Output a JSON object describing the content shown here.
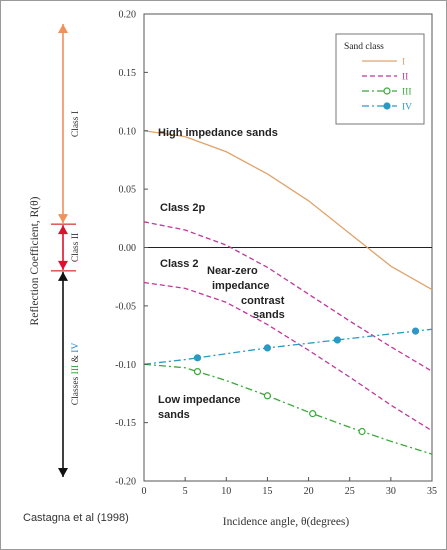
{
  "chart_data": {
    "type": "line",
    "xlabel": "Incidence angle, θ(degrees)",
    "ylabel": "Reflection Coefficient, R(θ)",
    "xlim": [
      0,
      35
    ],
    "ylim": [
      -0.2,
      0.2
    ],
    "xticks": [
      "0",
      "5",
      "10",
      "15",
      "20",
      "25",
      "30",
      "35"
    ],
    "yticks": [
      "0.20",
      "0.15",
      "0.10",
      "0.05",
      "0.00",
      "-0.05",
      "-0.10",
      "-0.15",
      "-0.20"
    ],
    "grid": false,
    "legend": {
      "title": "Sand class",
      "position": "top-right"
    },
    "series": [
      {
        "name": "I",
        "color": "#e0a36b",
        "style": "solid",
        "x": [
          0,
          5,
          10,
          15,
          20,
          25,
          30,
          35
        ],
        "y": [
          0.1,
          0.095,
          0.082,
          0.063,
          0.04,
          0.012,
          -0.016,
          -0.036
        ]
      },
      {
        "name": "II",
        "color": "#c0389a",
        "style": "dashed",
        "x": [
          0,
          5,
          10,
          15,
          20,
          25,
          30,
          35
        ],
        "y": [
          0.022,
          0.015,
          0.002,
          -0.017,
          -0.04,
          -0.063,
          -0.085,
          -0.106
        ]
      },
      {
        "name": "II",
        "color": "#c0389a",
        "style": "dashed",
        "x": [
          0,
          5,
          10,
          15,
          20,
          25,
          30,
          35
        ],
        "y": [
          -0.03,
          -0.035,
          -0.047,
          -0.066,
          -0.088,
          -0.111,
          -0.135,
          -0.157
        ]
      },
      {
        "name": "III",
        "color": "#3aa83a",
        "style": "dashdot",
        "marker": "open-circle",
        "x": [
          0,
          5,
          10,
          15,
          20,
          25,
          30,
          35
        ],
        "y": [
          -0.1,
          -0.103,
          -0.114,
          -0.127,
          -0.141,
          -0.154,
          -0.166,
          -0.177
        ],
        "marker_x": [
          6.5,
          15,
          20.5,
          26.5
        ]
      },
      {
        "name": "IV",
        "color": "#2a9ac4",
        "style": "dashdot",
        "marker": "filled-circle",
        "x": [
          0,
          5,
          10,
          15,
          20,
          25,
          30,
          35
        ],
        "y": [
          -0.1,
          -0.096,
          -0.091,
          -0.086,
          -0.082,
          -0.078,
          -0.074,
          -0.07
        ],
        "marker_x": [
          6.5,
          15,
          23.5,
          33
        ]
      }
    ],
    "annotations": {
      "high_impedance": "High impedance sands",
      "class_2p": "Class 2p",
      "class_2": "Class 2",
      "near_zero": [
        "Near-zero",
        "impedance",
        "contrast",
        "sands"
      ],
      "low_impedance": [
        "Low impedance",
        "sands"
      ]
    },
    "class_ranges": [
      {
        "label": "Class I",
        "from": 0.2,
        "to": 0.02,
        "color": "#f0905a"
      },
      {
        "label": "Class II",
        "from": 0.02,
        "to": -0.02,
        "color": "#e0102a"
      },
      {
        "label": "Classes III & IV",
        "from": -0.02,
        "to": -0.2,
        "color": "#111111"
      }
    ],
    "credit": "Castagna et al (1998)"
  }
}
